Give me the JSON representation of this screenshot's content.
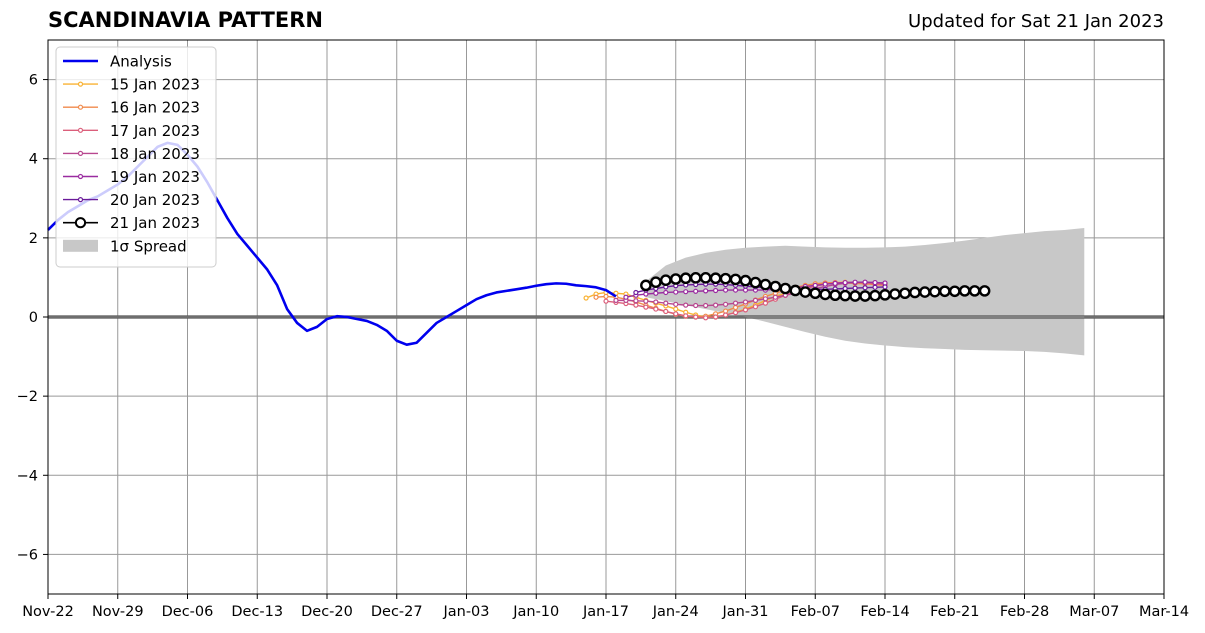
{
  "header": {
    "title": "SCANDINAVIA PATTERN",
    "updated": "Updated for Sat 21 Jan 2023"
  },
  "colors": {
    "analysis": "#0000ee",
    "spread": "#c8c8c8",
    "forecasts": [
      "#f9b233",
      "#f08a4b",
      "#db5f7b",
      "#b8478f",
      "#9a2ca0",
      "#6a1a9a",
      "#000000"
    ]
  },
  "chart_data": {
    "type": "line",
    "title": "SCANDINAVIA PATTERN",
    "subtitle": "Updated for Sat 21 Jan 2023",
    "xlim": [
      "2022-11-22",
      "2023-03-14"
    ],
    "ylim": [
      -7,
      7
    ],
    "x_ticks": [
      "Nov-22",
      "Nov-29",
      "Dec-06",
      "Dec-13",
      "Dec-20",
      "Dec-27",
      "Jan-03",
      "Jan-10",
      "Jan-17",
      "Jan-24",
      "Jan-31",
      "Feb-07",
      "Feb-14",
      "Feb-21",
      "Feb-28",
      "Mar-07",
      "Mar-14"
    ],
    "y_ticks": [
      "−6",
      "−4",
      "−2",
      "0",
      "2",
      "4",
      "6"
    ],
    "y_tick_values": [
      -6,
      -4,
      -2,
      0,
      2,
      4,
      6
    ],
    "grid": true,
    "legend_position": "top-left",
    "analysis": {
      "name": "Analysis",
      "start": "2022-11-22",
      "values": [
        2.2,
        2.45,
        2.65,
        2.8,
        2.95,
        3.05,
        3.2,
        3.35,
        3.55,
        3.8,
        4.05,
        4.3,
        4.4,
        4.35,
        4.1,
        3.8,
        3.4,
        2.95,
        2.5,
        2.1,
        1.8,
        1.5,
        1.2,
        0.8,
        0.2,
        -0.15,
        -0.35,
        -0.25,
        -0.05,
        0.02,
        0.0,
        -0.05,
        -0.1,
        -0.2,
        -0.35,
        -0.6,
        -0.7,
        -0.65,
        -0.4,
        -0.15,
        0.0,
        0.15,
        0.3,
        0.45,
        0.55,
        0.62,
        0.66,
        0.7,
        0.74,
        0.79,
        0.83,
        0.85,
        0.84,
        0.8,
        0.78,
        0.75,
        0.68,
        0.52
      ]
    },
    "spread": {
      "name": "1σ Spread",
      "start": "2023-01-21",
      "upper": [
        0.9,
        1.3,
        1.5,
        1.62,
        1.7,
        1.75,
        1.78,
        1.8,
        1.78,
        1.76,
        1.75,
        1.75,
        1.76,
        1.78,
        1.82,
        1.87,
        1.93,
        2.0,
        2.07,
        2.12,
        2.17,
        2.2,
        2.25
      ],
      "lower": [
        0.5,
        0.4,
        0.3,
        0.2,
        0.1,
        0.0,
        -0.12,
        -0.25,
        -0.38,
        -0.5,
        -0.6,
        -0.67,
        -0.72,
        -0.76,
        -0.79,
        -0.81,
        -0.83,
        -0.84,
        -0.85,
        -0.86,
        -0.88,
        -0.92,
        -0.97
      ]
    },
    "series": [
      {
        "name": "15 Jan 2023",
        "start": "2023-01-15",
        "values": [
          0.48,
          0.58,
          0.62,
          0.6,
          0.58,
          0.5,
          0.42,
          0.35,
          0.28,
          0.2,
          0.12,
          0.05,
          0.0,
          0.0,
          0.05,
          0.12,
          0.2,
          0.3,
          0.42,
          0.52,
          0.6,
          0.68,
          0.75,
          0.8,
          0.85,
          0.87,
          0.88,
          0.87,
          0.86,
          0.85,
          0.84
        ]
      },
      {
        "name": "16 Jan 2023",
        "start": "2023-01-16",
        "values": [
          0.5,
          0.52,
          0.5,
          0.45,
          0.38,
          0.3,
          0.22,
          0.14,
          0.07,
          0.02,
          0.0,
          0.02,
          0.08,
          0.15,
          0.24,
          0.33,
          0.43,
          0.52,
          0.6,
          0.68,
          0.75,
          0.8,
          0.84,
          0.86,
          0.87,
          0.86,
          0.85,
          0.84,
          0.82,
          0.8
        ]
      },
      {
        "name": "17 Jan 2023",
        "start": "2023-01-17",
        "values": [
          0.4,
          0.37,
          0.34,
          0.3,
          0.25,
          0.2,
          0.14,
          0.08,
          0.03,
          0.0,
          -0.02,
          0.0,
          0.05,
          0.11,
          0.18,
          0.26,
          0.35,
          0.45,
          0.55,
          0.64,
          0.72,
          0.78,
          0.83,
          0.86,
          0.87,
          0.87,
          0.86,
          0.84,
          0.82
        ]
      },
      {
        "name": "18 Jan 2023",
        "start": "2023-01-18",
        "values": [
          0.42,
          0.42,
          0.41,
          0.4,
          0.38,
          0.35,
          0.32,
          0.3,
          0.29,
          0.29,
          0.3,
          0.32,
          0.35,
          0.38,
          0.42,
          0.46,
          0.5,
          0.55,
          0.6,
          0.66,
          0.72,
          0.77,
          0.82,
          0.85,
          0.87,
          0.88,
          0.87,
          0.85
        ]
      },
      {
        "name": "19 Jan 2023",
        "start": "2023-01-19",
        "values": [
          0.5,
          0.55,
          0.58,
          0.6,
          0.62,
          0.63,
          0.64,
          0.65,
          0.66,
          0.67,
          0.68,
          0.68,
          0.68,
          0.68,
          0.68,
          0.7,
          0.72,
          0.74,
          0.77,
          0.8,
          0.83,
          0.85,
          0.87,
          0.88,
          0.88,
          0.87,
          0.86
        ]
      },
      {
        "name": "20 Jan 2023",
        "start": "2023-01-20",
        "values": [
          0.62,
          0.68,
          0.72,
          0.76,
          0.79,
          0.81,
          0.82,
          0.83,
          0.83,
          0.82,
          0.8,
          0.78,
          0.76,
          0.74,
          0.72,
          0.71,
          0.7,
          0.7,
          0.7,
          0.7,
          0.71,
          0.72,
          0.73,
          0.74,
          0.75,
          0.76
        ]
      },
      {
        "name": "21 Jan 2023",
        "start": "2023-01-21",
        "values": [
          0.8,
          0.88,
          0.93,
          0.96,
          0.98,
          0.99,
          0.99,
          0.98,
          0.97,
          0.95,
          0.92,
          0.87,
          0.82,
          0.77,
          0.72,
          0.67,
          0.63,
          0.6,
          0.57,
          0.55,
          0.54,
          0.53,
          0.53,
          0.54,
          0.56,
          0.58,
          0.6,
          0.62,
          0.63,
          0.64,
          0.65,
          0.65,
          0.66,
          0.66,
          0.66
        ]
      }
    ],
    "legend": [
      "Analysis",
      "15 Jan 2023",
      "16 Jan 2023",
      "17 Jan 2023",
      "18 Jan 2023",
      "19 Jan 2023",
      "20 Jan 2023",
      "21 Jan 2023",
      "1σ Spread"
    ]
  }
}
